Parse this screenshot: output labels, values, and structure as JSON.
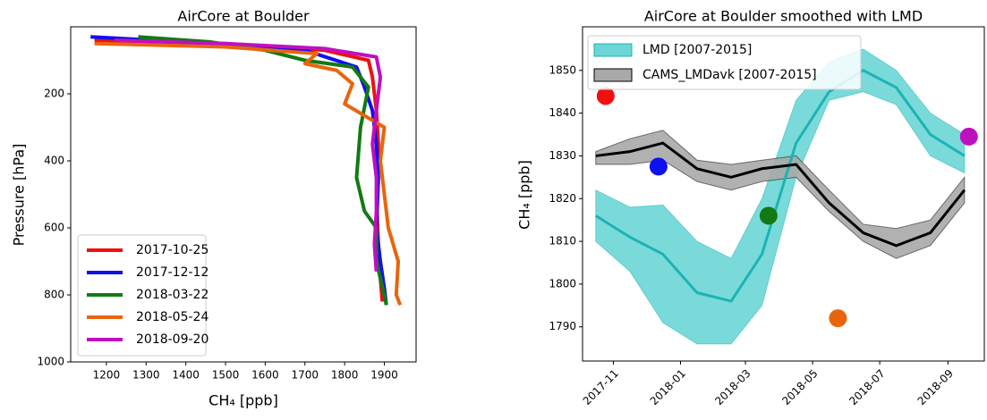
{
  "chart_data": [
    {
      "type": "profile",
      "title": "AirCore at Boulder",
      "xlabel": "CH₄ [ppb]",
      "ylabel": "Pressure [hPa]",
      "xlim": [
        1110,
        1980
      ],
      "xticks": [
        1200,
        1300,
        1400,
        1500,
        1600,
        1700,
        1800,
        1900
      ],
      "ylim": [
        1000,
        0
      ],
      "yticks": [
        200,
        400,
        600,
        800,
        1000
      ],
      "legend": "lower left",
      "series": [
        {
          "name": "2017-10-25",
          "color": "#f01010",
          "x": [
            1170,
            1500,
            1750,
            1860,
            1870,
            1880,
            1885,
            1880,
            1885,
            1890,
            1895
          ],
          "values": [
            40,
            50,
            70,
            100,
            150,
            250,
            350,
            500,
            650,
            750,
            820
          ]
        },
        {
          "name": "2017-12-12",
          "color": "#1010f0",
          "x": [
            1160,
            1400,
            1700,
            1830,
            1850,
            1870,
            1880,
            1885,
            1880,
            1890,
            1900,
            1905
          ],
          "values": [
            30,
            45,
            70,
            120,
            180,
            250,
            350,
            450,
            600,
            700,
            780,
            830
          ]
        },
        {
          "name": "2018-03-22",
          "color": "#137a13",
          "x": [
            1280,
            1460,
            1600,
            1700,
            1820,
            1860,
            1840,
            1830,
            1850,
            1880,
            1880,
            1900,
            1905
          ],
          "values": [
            30,
            45,
            70,
            100,
            120,
            180,
            300,
            450,
            550,
            600,
            700,
            800,
            830
          ]
        },
        {
          "name": "2018-05-24",
          "color": "#e8650e",
          "x": [
            1170,
            1500,
            1730,
            1700,
            1780,
            1820,
            1800,
            1900,
            1890,
            1900,
            1910,
            1935,
            1930,
            1940
          ],
          "values": [
            50,
            60,
            80,
            110,
            130,
            170,
            230,
            300,
            400,
            500,
            600,
            700,
            800,
            830
          ]
        },
        {
          "name": "2018-09-20",
          "color": "#bf10bf",
          "x": [
            1220,
            1500,
            1750,
            1880,
            1890,
            1880,
            1870,
            1880,
            1880,
            1875,
            1880
          ],
          "values": [
            40,
            50,
            65,
            90,
            150,
            250,
            350,
            450,
            550,
            650,
            730
          ]
        }
      ]
    },
    {
      "type": "band",
      "title": "AirCore at Boulder smoothed with LMD",
      "ylabel": "CH₄ [ppb]",
      "xlim": [
        "2017-10-04",
        "2018-10-04"
      ],
      "xticks": [
        "2017-11",
        "2018-01",
        "2018-03",
        "2018-05",
        "2018-07",
        "2018-09"
      ],
      "ylim": [
        1782,
        1860.2
      ],
      "yticks": [
        1790,
        1800,
        1810,
        1820,
        1830,
        1840,
        1850
      ],
      "legend": "upper left",
      "x": [
        "2017-10",
        "2017-11",
        "2017-12",
        "2018-01",
        "2018-02",
        "2018-03",
        "2018-04",
        "2018-05",
        "2018-06",
        "2018-07",
        "2018-08",
        "2018-09"
      ],
      "series": [
        {
          "name": "LMD [2007-2015]",
          "color": "#1db3b3",
          "band_color": "#6cd6d6",
          "values": [
            1816,
            1811,
            1807,
            1798,
            1796,
            1807,
            1833,
            1845,
            1850,
            1846,
            1835,
            1830
          ],
          "lower": [
            1810,
            1803,
            1791,
            1786,
            1786,
            1795,
            1825,
            1843,
            1845,
            1842,
            1830,
            1826
          ],
          "upper": [
            1822,
            1818,
            1818.5,
            1810,
            1806,
            1820,
            1843,
            1852,
            1855,
            1850,
            1840,
            1835
          ]
        },
        {
          "name": "CAMS_LMDavk [2007-2015]",
          "color": "#000000",
          "band_color": "#a9a9a9",
          "values": [
            1830,
            1831,
            1833,
            1827,
            1825,
            1827,
            1828,
            1819,
            1812,
            1809,
            1812,
            1822
          ],
          "lower": [
            1828,
            1828,
            1829,
            1824,
            1822,
            1824,
            1825,
            1817,
            1810,
            1806,
            1809,
            1819
          ],
          "upper": [
            1831,
            1834,
            1836,
            1829,
            1828,
            1829,
            1830,
            1822,
            1814,
            1813,
            1815,
            1825
          ]
        }
      ],
      "points": {
        "x": [
          "2017-10-25",
          "2017-12-12",
          "2018-03-22",
          "2018-05-24",
          "2018-09-20"
        ],
        "values": [
          1844,
          1827.5,
          1816,
          1792,
          1834.5
        ],
        "colors": [
          "#f01010",
          "#1010f0",
          "#137a13",
          "#e8650e",
          "#bf10bf"
        ]
      }
    }
  ]
}
